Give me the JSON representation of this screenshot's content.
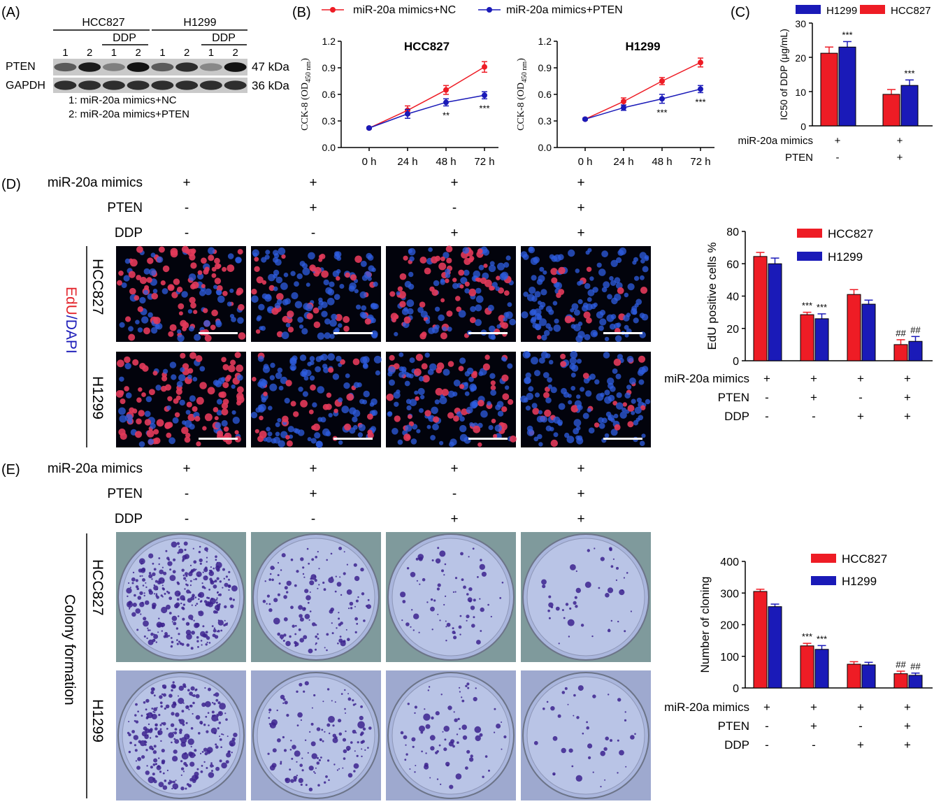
{
  "colors": {
    "red": "#ee1c25",
    "blue": "#1a1ab8",
    "nuc": "#2f5ee0",
    "edu": "#e33a5a",
    "plate": "#b9c4e6",
    "colony": "#3c238e"
  },
  "panel_labels": {
    "a": "(A)",
    "b": "(B)",
    "c": "(C)",
    "d": "(D)",
    "e": "(E)"
  },
  "western": {
    "groups": [
      "HCC827",
      "H1299"
    ],
    "ddp": "DDP",
    "lanes": [
      "1",
      "2",
      "1",
      "2",
      "1",
      "2",
      "1",
      "2"
    ],
    "bands": [
      {
        "name": "PTEN",
        "size": "47 kDa",
        "intensity": [
          0.55,
          0.9,
          0.35,
          0.95,
          0.55,
          0.8,
          0.3,
          0.95
        ]
      },
      {
        "name": "GAPDH",
        "size": "36 kDa",
        "intensity": [
          0.8,
          0.8,
          0.8,
          0.8,
          0.8,
          0.8,
          0.8,
          0.8
        ]
      }
    ],
    "legend": [
      "1: miR-20a mimics+NC",
      "2: miR-20a mimics+PTEN"
    ]
  },
  "conditions": {
    "row_labels": [
      "miR-20a mimics",
      "PTEN",
      "DDP"
    ],
    "values": [
      [
        "+",
        "+",
        "+",
        "+"
      ],
      [
        "-",
        "+",
        "-",
        "+"
      ],
      [
        "-",
        "-",
        "+",
        "+"
      ]
    ],
    "cell_lines": [
      "HCC827",
      "H1299"
    ],
    "edu_stain": [
      "EdU",
      "/",
      "DAPI"
    ],
    "edu_levels": [
      [
        0.65,
        0.28,
        0.4,
        0.1
      ],
      [
        0.6,
        0.25,
        0.34,
        0.12
      ]
    ],
    "colony_title": "Colony formation",
    "colony_counts_relative": [
      [
        0.75,
        0.32,
        0.18,
        0.11
      ],
      [
        0.64,
        0.31,
        0.19,
        0.1
      ]
    ]
  },
  "chart_data": [
    {
      "type": "line",
      "title": "HCC827",
      "ylabel": "CCK-8 (OD450 nm)",
      "ylabel_main": "CCK-8 (OD",
      "ylabel_sub": "450 nm",
      "ylabel_end": ")",
      "ylim": [
        0,
        1.2
      ],
      "yticks": [
        "0.0",
        "0.3",
        "0.6",
        "0.9",
        "1.2"
      ],
      "x": [
        "0 h",
        "24 h",
        "48 h",
        "72 h"
      ],
      "series": [
        {
          "name": "miR-20a mimics+NC",
          "color": "#ee1c25",
          "values": [
            0.22,
            0.42,
            0.65,
            0.91
          ],
          "err": [
            0.01,
            0.05,
            0.05,
            0.06
          ]
        },
        {
          "name": "miR-20a mimics+PTEN",
          "color": "#1a1ab8",
          "values": [
            0.22,
            0.38,
            0.51,
            0.59
          ],
          "err": [
            0.01,
            0.05,
            0.04,
            0.04
          ]
        }
      ],
      "annotations": [
        "",
        "",
        "**",
        "***"
      ]
    },
    {
      "type": "line",
      "title": "H1299",
      "ylabel": "CCK-8 (OD450 nm)",
      "ylabel_main": "CCK-8 (OD",
      "ylabel_sub": "450 nm",
      "ylabel_end": ")",
      "ylim": [
        0,
        1.2
      ],
      "yticks": [
        "0.0",
        "0.3",
        "0.6",
        "0.9",
        "1.2"
      ],
      "x": [
        "0 h",
        "24 h",
        "48 h",
        "72 h"
      ],
      "series": [
        {
          "name": "miR-20a mimics+NC",
          "color": "#ee1c25",
          "values": [
            0.32,
            0.52,
            0.75,
            0.96
          ],
          "err": [
            0.01,
            0.04,
            0.04,
            0.05
          ]
        },
        {
          "name": "miR-20a mimics+PTEN",
          "color": "#1a1ab8",
          "values": [
            0.32,
            0.45,
            0.55,
            0.66
          ],
          "err": [
            0.01,
            0.03,
            0.05,
            0.04
          ]
        }
      ],
      "annotations": [
        "",
        "",
        "***",
        "***"
      ]
    },
    {
      "type": "bar",
      "ylabel": "IC50 of DDP (μg/mL)",
      "ylim": [
        0,
        30
      ],
      "yticks": [
        "0",
        "10",
        "20",
        "30"
      ],
      "legend": [
        "H1299",
        "HCC827"
      ],
      "row_labels": [
        "miR-20a mimics",
        "PTEN"
      ],
      "conditions": [
        [
          "+",
          "+"
        ],
        [
          "-",
          "+"
        ]
      ],
      "series": [
        {
          "name": "HCC827",
          "color": "#ee1c25",
          "values": [
            21.2,
            9.2
          ],
          "err": [
            1.8,
            1.4
          ]
        },
        {
          "name": "H1299",
          "color": "#1a1ab8",
          "values": [
            23.0,
            11.8
          ],
          "err": [
            1.6,
            1.6
          ]
        }
      ],
      "annotations": [
        [
          "",
          ""
        ],
        [
          "***",
          "***"
        ]
      ]
    },
    {
      "type": "bar",
      "ylabel": "EdU positive cells %",
      "ylim": [
        0,
        80
      ],
      "yticks": [
        "0",
        "20",
        "40",
        "60",
        "80"
      ],
      "legend": [
        "HCC827",
        "H1299"
      ],
      "row_labels": [
        "miR-20a mimics",
        "PTEN",
        "DDP"
      ],
      "conditions": [
        [
          "+",
          "+",
          "+",
          "+"
        ],
        [
          "-",
          "+",
          "-",
          "+"
        ],
        [
          "-",
          "-",
          "+",
          "+"
        ]
      ],
      "series": [
        {
          "name": "HCC827",
          "color": "#ee1c25",
          "values": [
            64.5,
            28.5,
            41.0,
            10.0
          ],
          "err": [
            2.5,
            1.5,
            3.0,
            3.0
          ]
        },
        {
          "name": "H1299",
          "color": "#1a1ab8",
          "values": [
            60.0,
            26.0,
            35.0,
            12.0
          ],
          "err": [
            3.5,
            3.0,
            2.5,
            3.0
          ]
        }
      ],
      "annotations": [
        [
          "",
          "***",
          "",
          "##"
        ],
        [
          "",
          "***",
          "",
          "##"
        ]
      ]
    },
    {
      "type": "bar",
      "ylabel": "Number of cloning",
      "ylim": [
        0,
        400
      ],
      "yticks": [
        "0",
        "100",
        "200",
        "300",
        "400"
      ],
      "legend": [
        "HCC827",
        "H1299"
      ],
      "row_labels": [
        "miR-20a mimics",
        "PTEN",
        "DDP"
      ],
      "conditions": [
        [
          "+",
          "+",
          "+",
          "+"
        ],
        [
          "-",
          "+",
          "-",
          "+"
        ],
        [
          "-",
          "-",
          "+",
          "+"
        ]
      ],
      "series": [
        {
          "name": "HCC827",
          "color": "#ee1c25",
          "values": [
            305,
            133,
            75,
            45
          ],
          "err": [
            7,
            8,
            8,
            8
          ]
        },
        {
          "name": "H1299",
          "color": "#1a1ab8",
          "values": [
            257,
            122,
            73,
            40
          ],
          "err": [
            8,
            12,
            8,
            7
          ]
        }
      ],
      "annotations": [
        [
          "",
          "***",
          "",
          "##"
        ],
        [
          "",
          "***",
          "",
          "##"
        ]
      ]
    }
  ]
}
